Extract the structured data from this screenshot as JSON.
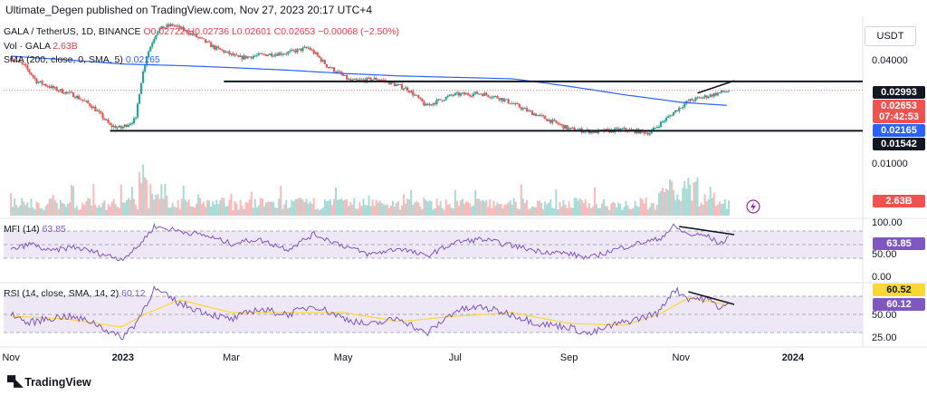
{
  "header": {
    "credit": "Ultimate_Degen published on TradingView.com, Nov 27, 2023 20:17 UTC+4",
    "symbol": "GALA / TetherUS, 1D, BINANCE",
    "ohlc": "O0.02722 H0.02736 L0.02601 C0.02653 −0.00068 (−2.50%)",
    "vol_label": "Vol · GALA",
    "vol_value": "2.63B",
    "sma_label": "SMA (200, close, 0, SMA, 5)",
    "sma_value": "0.02165",
    "currency_button": "USDT"
  },
  "footer": {
    "brand": "TradingView"
  },
  "colors": {
    "up": "#26a69a",
    "down": "#ef5350",
    "sma": "#2962ff",
    "mfi": "#7e57c2",
    "rsi": "#7e57c2",
    "rsi_ma": "#fdd835",
    "band_fill": "#ede7f6",
    "black_label": "#131722",
    "red_label": "#ef5350",
    "blue_label": "#2962ff",
    "vol_label": "#ef5350",
    "mfi_label": "#7e57c2",
    "rsi_label_ma": "#fdd835"
  },
  "chart_data": [
    {
      "type": "candlestick",
      "title": "GALA / TetherUS, 1D, BINANCE",
      "scale": "log",
      "x_ticks": [
        "Nov",
        "2023",
        "Mar",
        "May",
        "Jul",
        "Sep",
        "Nov",
        "2024"
      ],
      "y_ticks": [
        "0.04000",
        "0.01000"
      ],
      "price_points": [
        [
          "2022-11-01",
          0.041
        ],
        [
          "2022-11-08",
          0.037
        ],
        [
          "2022-11-15",
          0.03
        ],
        [
          "2022-11-25",
          0.027
        ],
        [
          "2022-12-05",
          0.025
        ],
        [
          "2022-12-15",
          0.0215
        ],
        [
          "2022-12-25",
          0.0165
        ],
        [
          "2022-12-31",
          0.016
        ],
        [
          "2023-01-08",
          0.018
        ],
        [
          "2023-01-14",
          0.042
        ],
        [
          "2023-01-20",
          0.06
        ],
        [
          "2023-01-28",
          0.064
        ],
        [
          "2023-02-08",
          0.056
        ],
        [
          "2023-02-20",
          0.047
        ],
        [
          "2023-03-05",
          0.041
        ],
        [
          "2023-03-20",
          0.043
        ],
        [
          "2023-04-01",
          0.044
        ],
        [
          "2023-04-12",
          0.047
        ],
        [
          "2023-04-22",
          0.037
        ],
        [
          "2023-05-05",
          0.03
        ],
        [
          "2023-05-20",
          0.031
        ],
        [
          "2023-06-05",
          0.027
        ],
        [
          "2023-06-15",
          0.0215
        ],
        [
          "2023-06-30",
          0.025
        ],
        [
          "2023-07-15",
          0.0255
        ],
        [
          "2023-07-25",
          0.024
        ],
        [
          "2023-08-10",
          0.02
        ],
        [
          "2023-08-20",
          0.018
        ],
        [
          "2023-09-01",
          0.0158
        ],
        [
          "2023-09-15",
          0.0152
        ],
        [
          "2023-10-01",
          0.0157
        ],
        [
          "2023-10-15",
          0.015
        ],
        [
          "2023-10-25",
          0.0185
        ],
        [
          "2023-11-05",
          0.023
        ],
        [
          "2023-11-15",
          0.0245
        ],
        [
          "2023-11-27",
          0.02653
        ]
      ],
      "sma_points": [
        [
          "2022-11-01",
          0.042
        ],
        [
          "2022-12-01",
          0.04
        ],
        [
          "2023-01-01",
          0.0378
        ],
        [
          "2023-02-01",
          0.037
        ],
        [
          "2023-03-01",
          0.036
        ],
        [
          "2023-04-01",
          0.0348
        ],
        [
          "2023-05-01",
          0.0333
        ],
        [
          "2023-06-01",
          0.0322
        ],
        [
          "2023-07-01",
          0.0316
        ],
        [
          "2023-08-01",
          0.031
        ],
        [
          "2023-09-01",
          0.028
        ],
        [
          "2023-10-01",
          0.025
        ],
        [
          "2023-11-01",
          0.0226
        ],
        [
          "2023-11-27",
          0.02165
        ]
      ],
      "levels": [
        {
          "value": 0.02993,
          "label": "0.02993",
          "from": "2023-02-25"
        },
        {
          "value": 0.01542,
          "label": "0.01542",
          "from": "2022-12-25"
        }
      ],
      "trendline": [
        [
          "2023-11-10",
          0.0256
        ],
        [
          "2023-11-30",
          0.0302
        ]
      ],
      "last_price": {
        "value": 0.02653,
        "label": "0.02653",
        "countdown": "07:42:53"
      },
      "sma_label": "0.02165"
    },
    {
      "type": "bar",
      "title": "Vol · GALA",
      "last_value_label": "2.63B"
    },
    {
      "type": "line",
      "title": "MFI (14)",
      "value_label": "63.85",
      "y_ticks": [
        "100.00",
        "50.00",
        "0.00"
      ],
      "ylim": [
        0,
        100
      ],
      "band": [
        20,
        80
      ],
      "points": [
        [
          "2022-11-01",
          38
        ],
        [
          "2022-11-12",
          52
        ],
        [
          "2022-11-22",
          35
        ],
        [
          "2022-12-05",
          45
        ],
        [
          "2022-12-20",
          30
        ],
        [
          "2022-12-31",
          18
        ],
        [
          "2023-01-08",
          40
        ],
        [
          "2023-01-18",
          90
        ],
        [
          "2023-02-01",
          80
        ],
        [
          "2023-02-15",
          70
        ],
        [
          "2023-03-01",
          52
        ],
        [
          "2023-03-15",
          62
        ],
        [
          "2023-04-01",
          40
        ],
        [
          "2023-04-15",
          73
        ],
        [
          "2023-05-01",
          48
        ],
        [
          "2023-05-15",
          28
        ],
        [
          "2023-06-01",
          42
        ],
        [
          "2023-06-15",
          24
        ],
        [
          "2023-07-01",
          55
        ],
        [
          "2023-07-15",
          62
        ],
        [
          "2023-08-01",
          48
        ],
        [
          "2023-08-15",
          36
        ],
        [
          "2023-09-01",
          30
        ],
        [
          "2023-09-12",
          20
        ],
        [
          "2023-09-25",
          38
        ],
        [
          "2023-10-10",
          54
        ],
        [
          "2023-10-20",
          62
        ],
        [
          "2023-10-28",
          90
        ],
        [
          "2023-11-05",
          72
        ],
        [
          "2023-11-15",
          70
        ],
        [
          "2023-11-22",
          52
        ],
        [
          "2023-11-27",
          63.85
        ]
      ],
      "trendline": [
        [
          "2023-10-31",
          90
        ],
        [
          "2023-11-30",
          72
        ]
      ]
    },
    {
      "type": "line",
      "title": "RSI (14, close, SMA, 14, 2)",
      "value_labels": [
        "60.52",
        "60.12"
      ],
      "y_ticks": [
        "50.00",
        "25.00"
      ],
      "ylim": [
        18,
        85
      ],
      "band": [
        30,
        70
      ],
      "rsi_points": [
        [
          "2022-11-01",
          52
        ],
        [
          "2022-11-10",
          40
        ],
        [
          "2022-11-20",
          45
        ],
        [
          "2022-12-01",
          48
        ],
        [
          "2022-12-15",
          42
        ],
        [
          "2022-12-31",
          24
        ],
        [
          "2023-01-08",
          40
        ],
        [
          "2023-01-18",
          78
        ],
        [
          "2023-02-01",
          62
        ],
        [
          "2023-02-15",
          52
        ],
        [
          "2023-03-01",
          44
        ],
        [
          "2023-03-15",
          56
        ],
        [
          "2023-04-01",
          50
        ],
        [
          "2023-04-15",
          60
        ],
        [
          "2023-05-01",
          46
        ],
        [
          "2023-05-15",
          38
        ],
        [
          "2023-06-01",
          46
        ],
        [
          "2023-06-15",
          28
        ],
        [
          "2023-07-01",
          54
        ],
        [
          "2023-07-15",
          58
        ],
        [
          "2023-08-01",
          50
        ],
        [
          "2023-08-15",
          40
        ],
        [
          "2023-09-01",
          36
        ],
        [
          "2023-09-12",
          28
        ],
        [
          "2023-09-25",
          38
        ],
        [
          "2023-10-10",
          46
        ],
        [
          "2023-10-20",
          52
        ],
        [
          "2023-10-28",
          78
        ],
        [
          "2023-11-05",
          68
        ],
        [
          "2023-11-15",
          67
        ],
        [
          "2023-11-22",
          58
        ],
        [
          "2023-11-27",
          60.12
        ]
      ],
      "ma_points": [
        [
          "2022-11-01",
          48
        ],
        [
          "2022-12-01",
          45
        ],
        [
          "2022-12-31",
          36
        ],
        [
          "2023-01-15",
          52
        ],
        [
          "2023-02-01",
          66
        ],
        [
          "2023-03-01",
          52
        ],
        [
          "2023-04-01",
          52
        ],
        [
          "2023-05-01",
          52
        ],
        [
          "2023-06-01",
          42
        ],
        [
          "2023-07-01",
          48
        ],
        [
          "2023-08-01",
          52
        ],
        [
          "2023-09-01",
          40
        ],
        [
          "2023-10-01",
          38
        ],
        [
          "2023-10-20",
          50
        ],
        [
          "2023-11-05",
          68
        ],
        [
          "2023-11-27",
          60.52
        ]
      ],
      "trendline": [
        [
          "2023-11-05",
          75
        ],
        [
          "2023-11-30",
          61
        ]
      ]
    }
  ]
}
